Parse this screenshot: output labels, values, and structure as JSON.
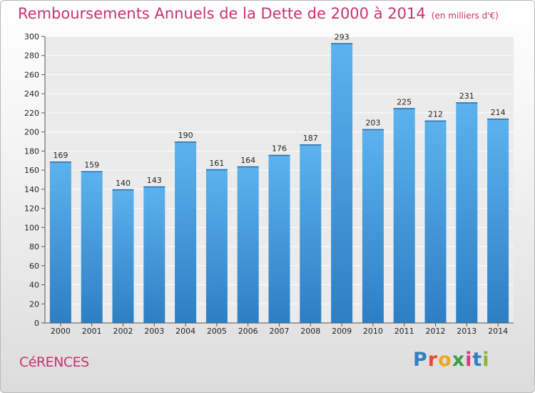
{
  "title": "Remboursements Annuels de la Dette de 2000 à 2014",
  "unit": "(en milliers d'€)",
  "commune": "CéRENCES",
  "logo": {
    "letters": [
      "P",
      "r",
      "o",
      "x",
      "i",
      "t",
      "i"
    ],
    "colors": [
      "#2f7fc5",
      "#e8492f",
      "#f0a51f",
      "#3a9e44",
      "#d63a7a",
      "#2f7fc5",
      "#8bb33b"
    ]
  },
  "chart_data": {
    "type": "bar",
    "categories": [
      "2000",
      "2001",
      "2002",
      "2003",
      "2004",
      "2005",
      "2006",
      "2007",
      "2008",
      "2009",
      "2010",
      "2011",
      "2012",
      "2013",
      "2014"
    ],
    "values": [
      169,
      159,
      140,
      143,
      190,
      161,
      164,
      176,
      187,
      293,
      203,
      225,
      212,
      231,
      214
    ],
    "ylim": [
      0,
      300
    ],
    "yticks": [
      0,
      20,
      40,
      60,
      80,
      100,
      120,
      140,
      160,
      180,
      200,
      220,
      240,
      260,
      280,
      300
    ],
    "grid": true,
    "bar_color": "#4aa3e3"
  }
}
